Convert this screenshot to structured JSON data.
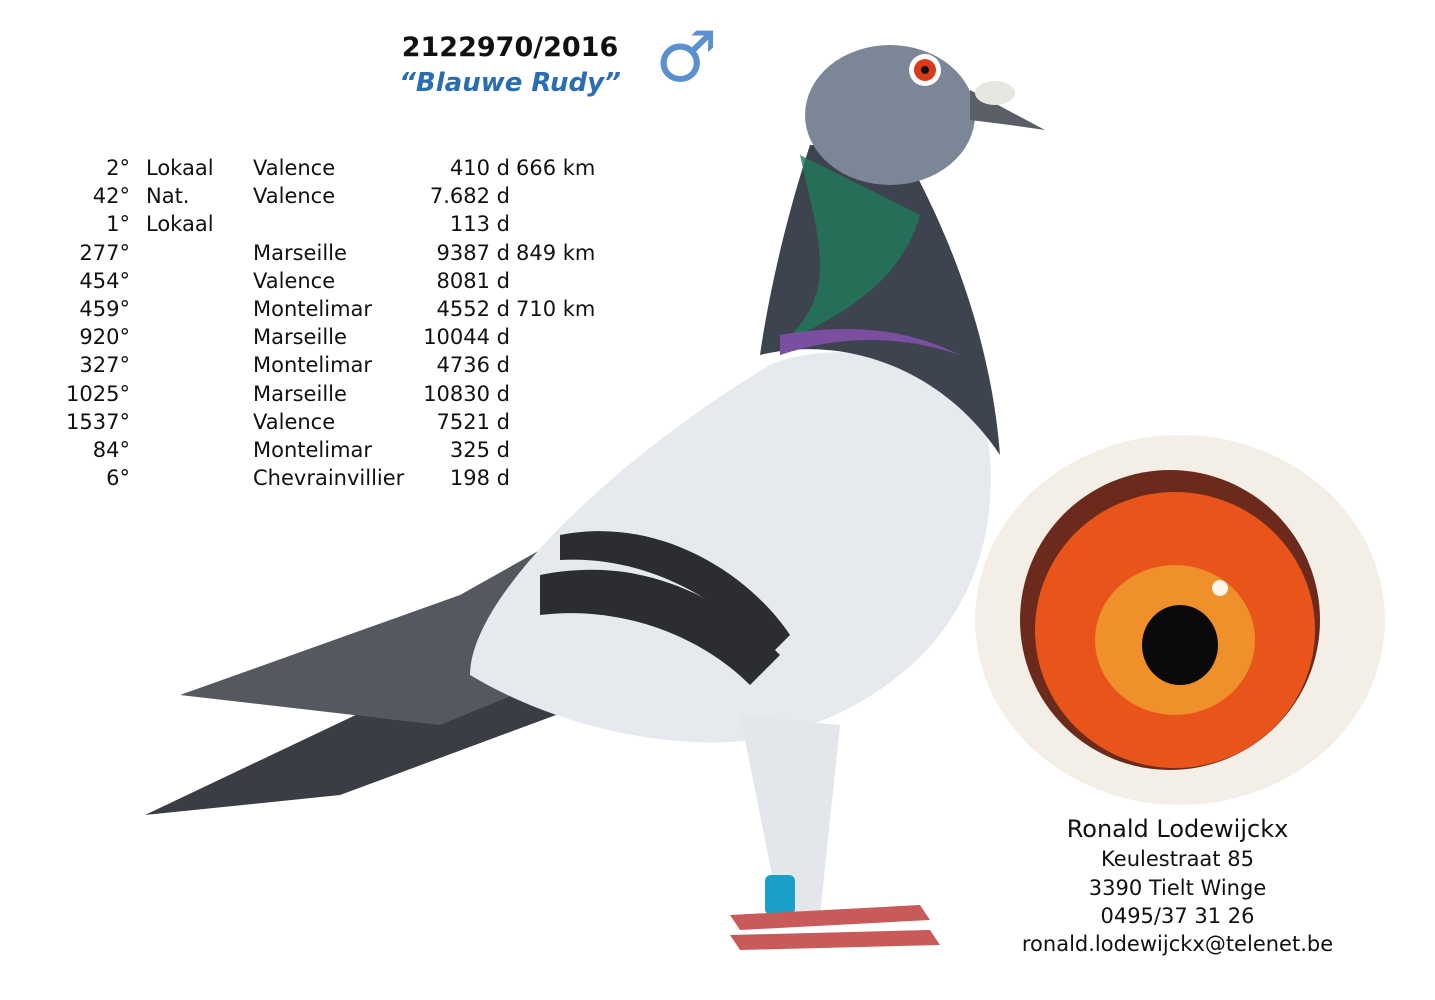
{
  "header": {
    "ring_number": "2122970/2016",
    "name": "“Blauwe Rudy”",
    "sex_symbol": "♂",
    "sex_icon": "male-symbol-icon"
  },
  "results": [
    {
      "rank": "2°",
      "class": "Lokaal",
      "location": "Valence",
      "count": "410 d",
      "distance": "666 km"
    },
    {
      "rank": "42°",
      "class": "Nat.",
      "location": "Valence",
      "count": "7.682 d",
      "distance": ""
    },
    {
      "rank": "1°",
      "class": "Lokaal",
      "location": "",
      "count": "113 d",
      "distance": ""
    },
    {
      "rank": "277°",
      "class": "",
      "location": "Marseille",
      "count": "9387 d",
      "distance": "849 km"
    },
    {
      "rank": "454°",
      "class": "",
      "location": "Valence",
      "count": "8081 d",
      "distance": ""
    },
    {
      "rank": "459°",
      "class": "",
      "location": "Montelimar",
      "count": "4552 d",
      "distance": "710 km"
    },
    {
      "rank": "920°",
      "class": "",
      "location": "Marseille",
      "count": "10044 d",
      "distance": ""
    },
    {
      "rank": "327°",
      "class": "",
      "location": "Montelimar",
      "count": "4736 d",
      "distance": ""
    },
    {
      "rank": "1025°",
      "class": "",
      "location": "Marseille",
      "count": "10830 d",
      "distance": ""
    },
    {
      "rank": "1537°",
      "class": "",
      "location": "Valence",
      "count": "7521 d",
      "distance": ""
    },
    {
      "rank": "84°",
      "class": "",
      "location": "Montelimar",
      "count": "325 d",
      "distance": ""
    },
    {
      "rank": "6°",
      "class": "",
      "location": "Chevrainvillier",
      "count": "198 d",
      "distance": ""
    }
  ],
  "contact": {
    "name": "Ronald Lodewijckx",
    "street": "Keulestraat 85",
    "city": "3390 Tielt Winge",
    "phone": "0495/37 31 26",
    "email": "ronald.lodewijckx@telenet.be"
  },
  "colors": {
    "name_blue": "#2a6db0",
    "symbol_blue": "#5c8fd0",
    "eye_orange": "#e8541a"
  }
}
